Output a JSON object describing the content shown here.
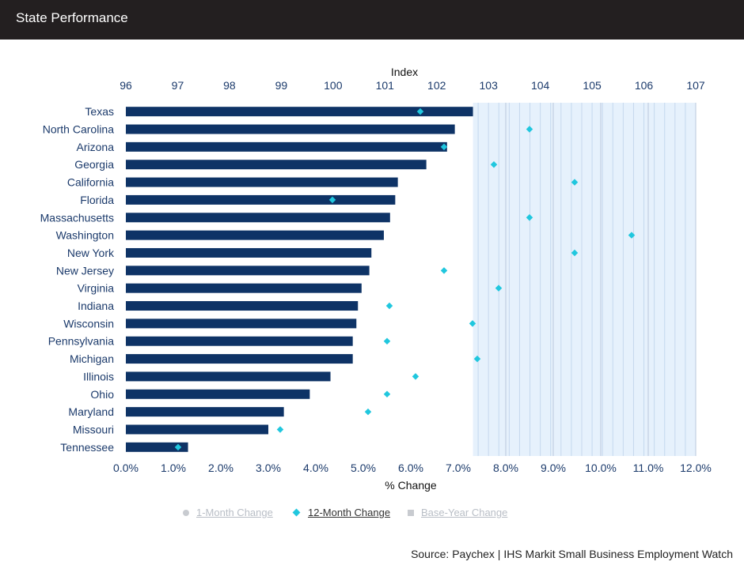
{
  "header": {
    "title": "State Performance"
  },
  "chart_data": {
    "type": "bar",
    "orientation": "horizontal",
    "categories": [
      "Texas",
      "North Carolina",
      "Arizona",
      "Georgia",
      "California",
      "Florida",
      "Massachusetts",
      "Washington",
      "New York",
      "New Jersey",
      "Virginia",
      "Indiana",
      "Wisconsin",
      "Pennsylvania",
      "Michigan",
      "Illinois",
      "Ohio",
      "Maryland",
      "Missouri",
      "Tennessee"
    ],
    "series": [
      {
        "name": "Base-Year Change",
        "axis": "Index",
        "values": [
          102.7,
          102.35,
          102.2,
          101.8,
          101.25,
          101.2,
          101.1,
          100.98,
          100.74,
          100.7,
          100.55,
          100.48,
          100.45,
          100.38,
          100.38,
          99.95,
          99.55,
          99.05,
          98.75,
          97.2
        ]
      },
      {
        "name": "12-Month Change",
        "axis": "% Change",
        "marker": "diamond",
        "values": [
          6.2,
          8.5,
          6.7,
          7.75,
          9.45,
          4.35,
          8.5,
          10.65,
          9.45,
          6.7,
          7.85,
          5.55,
          7.3,
          5.5,
          7.4,
          6.1,
          5.5,
          5.1,
          3.25,
          1.1
        ]
      }
    ],
    "title": "State Performance",
    "xlabel": "% Change",
    "x2label": "Index",
    "xlim": [
      0,
      12
    ],
    "x2lim": [
      96,
      107
    ],
    "xticks": [
      "0.0%",
      "1.0%",
      "2.0%",
      "3.0%",
      "4.0%",
      "5.0%",
      "6.0%",
      "7.0%",
      "8.0%",
      "9.0%",
      "10.0%",
      "11.0%",
      "12.0%"
    ],
    "x2ticks": [
      "96",
      "97",
      "98",
      "99",
      "100",
      "101",
      "102",
      "103",
      "104",
      "105",
      "106",
      "107"
    ],
    "grid": true,
    "legend_position": "bottom",
    "colors": {
      "bar": "#0e3366",
      "diamond": "#20c7de",
      "shade": "#e6f1fc",
      "grid": "#b9c8dc"
    }
  },
  "legend": [
    {
      "label": "1-Month Change",
      "state": "off",
      "symbol": "circle"
    },
    {
      "label": "12-Month Change",
      "state": "on",
      "symbol": "diamond"
    },
    {
      "label": "Base-Year Change",
      "state": "off",
      "symbol": "square"
    }
  ],
  "source": "Source: Paychex | IHS Markit Small Business Employment Watch"
}
